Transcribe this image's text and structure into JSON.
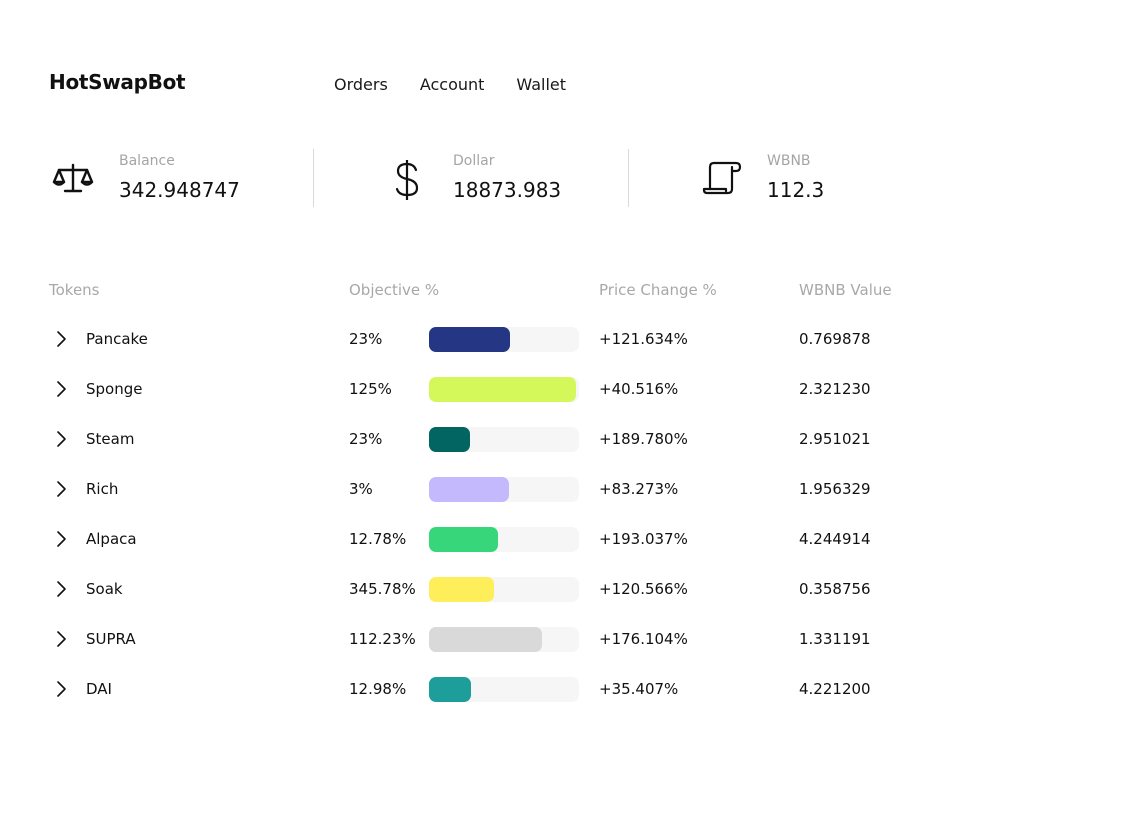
{
  "brand": {
    "name": "HotSwapBot"
  },
  "nav": {
    "orders": "Orders",
    "account": "Account",
    "wallet": "Wallet"
  },
  "stats": {
    "balance": {
      "label": "Balance",
      "value": "342.948747",
      "icon": "scale-icon"
    },
    "dollar": {
      "label": "Dollar",
      "value": "18873.983",
      "icon": "dollar-icon"
    },
    "wbnb": {
      "label": "WBNB",
      "value": "112.3",
      "icon": "scroll-icon"
    }
  },
  "table": {
    "headers": {
      "tokens": "Tokens",
      "objective": "Objective %",
      "price_change": "Price Change %",
      "wbnb_value": "WBNB Value"
    },
    "rows": [
      {
        "name": "Pancake",
        "objective": "23%",
        "bar_fraction": 0.54,
        "bar_color": "#253684",
        "price_change": "+121.634%",
        "wbnb_value": "0.769878"
      },
      {
        "name": "Sponge",
        "objective": "125%",
        "bar_fraction": 0.98,
        "bar_color": "#d4f75a",
        "price_change": "+40.516%",
        "wbnb_value": "2.321230"
      },
      {
        "name": "Steam",
        "objective": "23%",
        "bar_fraction": 0.27,
        "bar_color": "#036562",
        "price_change": "+189.780%",
        "wbnb_value": "2.951021"
      },
      {
        "name": "Rich",
        "objective": "3%",
        "bar_fraction": 0.53,
        "bar_color": "#c3b9fc",
        "price_change": "+83.273%",
        "wbnb_value": "1.956329"
      },
      {
        "name": "Alpaca",
        "objective": "12.78%",
        "bar_fraction": 0.46,
        "bar_color": "#37d67a",
        "price_change": "+193.037%",
        "wbnb_value": "4.244914"
      },
      {
        "name": "Soak",
        "objective": "345.78%",
        "bar_fraction": 0.43,
        "bar_color": "#fdee5a",
        "price_change": "+120.566%",
        "wbnb_value": "0.358756"
      },
      {
        "name": "SUPRA",
        "objective": "112.23%",
        "bar_fraction": 0.75,
        "bar_color": "#d9d9d9",
        "price_change": "+176.104%",
        "wbnb_value": "1.331191"
      },
      {
        "name": "DAI",
        "objective": "12.98%",
        "bar_fraction": 0.28,
        "bar_color": "#1e9e9a",
        "price_change": "+35.407%",
        "wbnb_value": "4.221200"
      }
    ]
  }
}
